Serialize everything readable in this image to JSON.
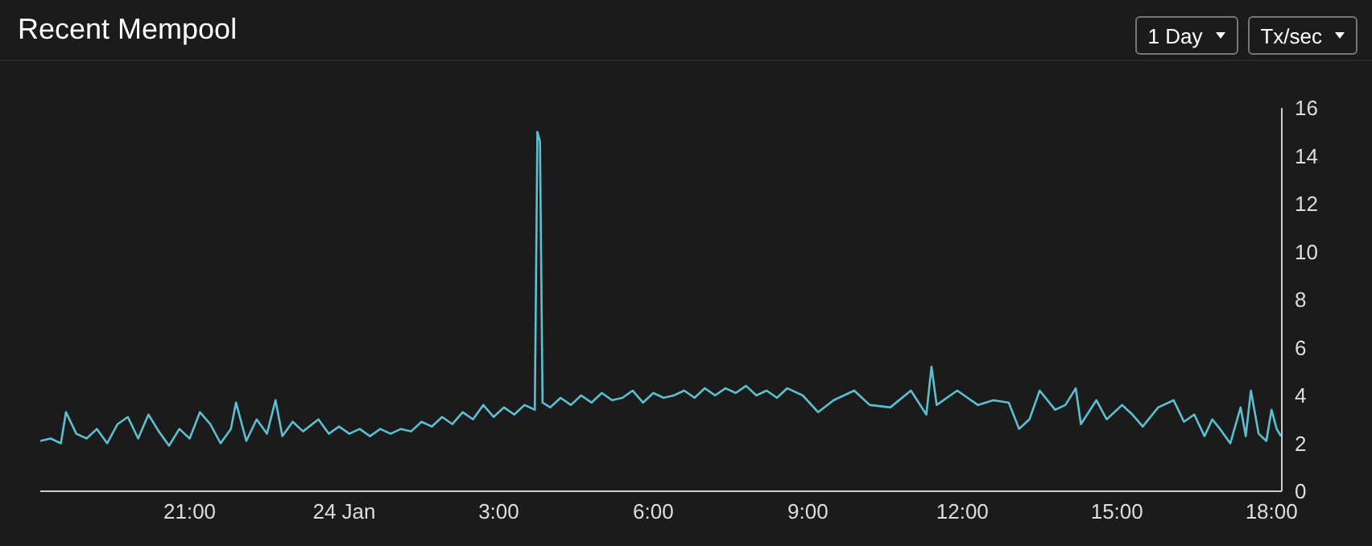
{
  "chart_data": {
    "type": "line",
    "title": "Recent Mempool",
    "annotations": [
      "1 Day",
      "Tx/sec"
    ],
    "x": [
      "--01-23T18:06",
      "--01-23T18:18",
      "--01-23T18:30",
      "--01-23T18:36",
      "--01-23T18:48",
      "--01-23T19:00",
      "--01-23T19:12",
      "--01-23T19:24",
      "--01-23T19:36",
      "--01-23T19:48",
      "--01-23T20:00",
      "--01-23T20:12",
      "--01-23T20:24",
      "--01-23T20:36",
      "--01-23T20:48",
      "--01-23T21:00",
      "--01-23T21:12",
      "--01-23T21:24",
      "--01-23T21:36",
      "--01-23T21:48",
      "--01-23T21:54",
      "--01-23T22:06",
      "--01-23T22:18",
      "--01-23T22:30",
      "--01-23T22:40",
      "--01-23T22:48",
      "--01-23T23:00",
      "--01-23T23:12",
      "--01-23T23:30",
      "--01-23T23:42",
      "--01-23T23:54",
      "--01-24T00:06",
      "--01-24T00:18",
      "--01-24T00:30",
      "--01-24T00:42",
      "--01-24T00:54",
      "--01-24T01:06",
      "--01-24T01:18",
      "--01-24T01:30",
      "--01-24T01:42",
      "--01-24T01:54",
      "--01-24T02:06",
      "--01-24T02:18",
      "--01-24T02:30",
      "--01-24T02:42",
      "--01-24T02:54",
      "--01-24T03:06",
      "--01-24T03:18",
      "--01-24T03:30",
      "--01-24T03:42",
      "--01-24T03:45",
      "--01-24T03:48",
      "--01-24T03:51",
      "--01-24T04:00",
      "--01-24T04:12",
      "--01-24T04:24",
      "--01-24T04:36",
      "--01-24T04:48",
      "--01-24T05:00",
      "--01-24T05:12",
      "--01-24T05:24",
      "--01-24T05:36",
      "--01-24T05:48",
      "--01-24T06:00",
      "--01-24T06:12",
      "--01-24T06:24",
      "--01-24T06:36",
      "--01-24T06:48",
      "--01-24T07:00",
      "--01-24T07:12",
      "--01-24T07:24",
      "--01-24T07:36",
      "--01-24T07:48",
      "--01-24T08:00",
      "--01-24T08:12",
      "--01-24T08:24",
      "--01-24T08:36",
      "--01-24T08:54",
      "--01-24T09:12",
      "--01-24T09:30",
      "--01-24T09:54",
      "--01-24T10:12",
      "--01-24T10:36",
      "--01-24T11:00",
      "--01-24T11:18",
      "--01-24T11:24",
      "--01-24T11:30",
      "--01-24T11:54",
      "--01-24T12:06",
      "--01-24T12:18",
      "--01-24T12:36",
      "--01-24T12:54",
      "--01-24T13:06",
      "--01-24T13:18",
      "--01-24T13:30",
      "--01-24T13:48",
      "--01-24T14:00",
      "--01-24T14:12",
      "--01-24T14:18",
      "--01-24T14:36",
      "--01-24T14:48",
      "--01-24T15:06",
      "--01-24T15:18",
      "--01-24T15:30",
      "--01-24T15:48",
      "--01-24T16:06",
      "--01-24T16:18",
      "--01-24T16:30",
      "--01-24T16:42",
      "--01-24T16:51",
      "--01-24T17:00",
      "--01-24T17:12",
      "--01-24T17:24",
      "--01-24T17:30",
      "--01-24T17:36",
      "--01-24T17:45",
      "--01-24T17:54",
      "--01-24T18:00",
      "--01-24T18:06",
      "--01-24T18:11"
    ],
    "series": [
      {
        "color": "#5bc0d0",
        "values": [
          2.1,
          2.2,
          2.0,
          3.3,
          2.4,
          2.2,
          2.6,
          2.0,
          2.8,
          3.1,
          2.2,
          3.2,
          2.5,
          1.9,
          2.6,
          2.2,
          3.3,
          2.8,
          2.0,
          2.6,
          3.7,
          2.1,
          3.0,
          2.4,
          3.8,
          2.3,
          2.9,
          2.5,
          3.0,
          2.4,
          2.7,
          2.4,
          2.6,
          2.3,
          2.6,
          2.4,
          2.6,
          2.5,
          2.9,
          2.7,
          3.1,
          2.8,
          3.3,
          3.0,
          3.6,
          3.1,
          3.5,
          3.2,
          3.6,
          3.4,
          15.0,
          14.6,
          3.7,
          3.5,
          3.9,
          3.6,
          4.0,
          3.7,
          4.1,
          3.8,
          3.9,
          4.2,
          3.7,
          4.1,
          3.9,
          4.0,
          4.2,
          3.9,
          4.3,
          4.0,
          4.3,
          4.1,
          4.4,
          4.0,
          4.2,
          3.9,
          4.3,
          4.0,
          3.3,
          3.8,
          4.2,
          3.6,
          3.5,
          4.2,
          3.2,
          5.2,
          3.6,
          4.2,
          3.9,
          3.6,
          3.8,
          3.7,
          2.6,
          3.0,
          4.2,
          3.4,
          3.6,
          4.3,
          2.8,
          3.8,
          3.0,
          3.6,
          3.2,
          2.7,
          3.5,
          3.8,
          2.9,
          3.2,
          2.3,
          3.0,
          2.6,
          2.0,
          3.5,
          2.3,
          4.2,
          2.4,
          2.1,
          3.4,
          2.6,
          2.3
        ]
      }
    ],
    "xlim": [
      "--01-23T18:06",
      "--01-24T18:12"
    ],
    "xticks": [
      {
        "value": "--01-23T21:00",
        "label": "21:00"
      },
      {
        "value": "--01-24T00:00",
        "label": "24 Jan"
      },
      {
        "value": "--01-24T03:00",
        "label": "3:00"
      },
      {
        "value": "--01-24T06:00",
        "label": "6:00"
      },
      {
        "value": "--01-24T09:00",
        "label": "9:00"
      },
      {
        "value": "--01-24T12:00",
        "label": "12:00"
      },
      {
        "value": "--01-24T15:00",
        "label": "15:00"
      },
      {
        "value": "--01-24T18:00",
        "label": "18:00"
      }
    ],
    "ylim": [
      0,
      16
    ],
    "yticks": [
      0,
      2,
      4,
      6,
      8,
      10,
      12,
      14,
      16
    ],
    "grid": false,
    "legend": false,
    "marker": "none",
    "line_style": "solid"
  }
}
